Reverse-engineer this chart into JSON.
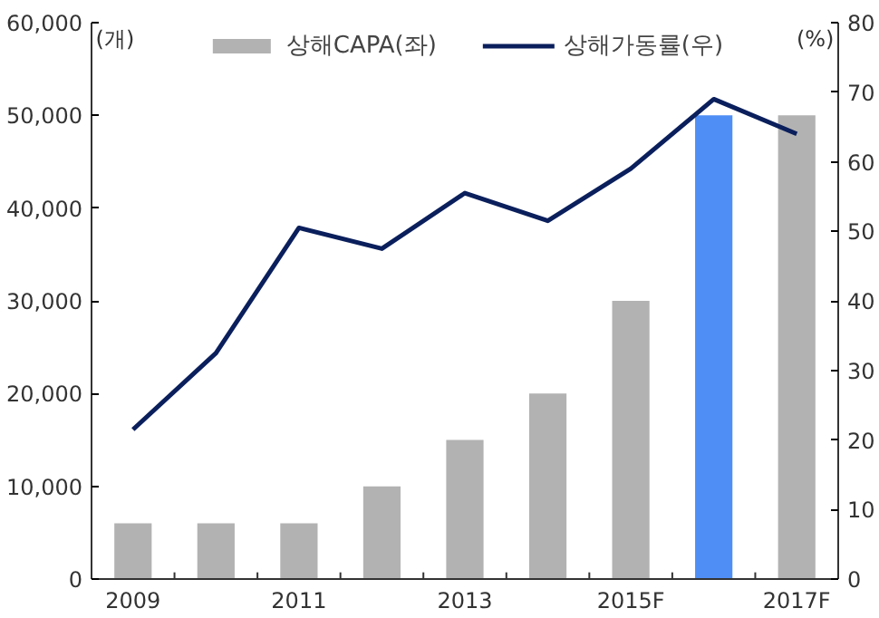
{
  "chart_data": {
    "type": "bar",
    "categories": [
      "2009",
      null,
      "2011",
      null,
      "2013",
      null,
      "2015F",
      null,
      "2017F"
    ],
    "series": [
      {
        "name": "상해CAPA(좌)",
        "colors": [
          "#b2b2b2",
          "#b2b2b2",
          "#b2b2b2",
          "#b2b2b2",
          "#b2b2b2",
          "#b2b2b2",
          "#b2b2b2",
          "#4f8ef5",
          "#b2b2b2"
        ],
        "color": "#b2b2b2",
        "values": [
          6000,
          6000,
          6000,
          10000,
          15000,
          20000,
          30000,
          50000,
          50000
        ]
      },
      {
        "name": "상해가동률(우)",
        "type": "line",
        "axis": "y2",
        "color": "#0a1f5c",
        "values": [
          21.5,
          32.5,
          50.5,
          47.5,
          55.5,
          51.5,
          59,
          69,
          64
        ]
      }
    ],
    "ylabel": "(개)",
    "y2label": "(%)",
    "ylim": [
      0,
      60000
    ],
    "yticks": [
      0,
      {
        "value": 10000,
        "label": "10,000"
      },
      {
        "value": 20000,
        "label": "20,000"
      },
      {
        "value": 30000,
        "label": "30,000"
      },
      {
        "value": 40000,
        "label": "40,000"
      },
      {
        "value": 50000,
        "label": "50,000"
      },
      {
        "value": 60000,
        "label": "60,000"
      }
    ],
    "y2lim": [
      0,
      80
    ],
    "y2ticks": [
      0,
      10,
      20,
      30,
      40,
      50,
      60,
      70,
      80
    ],
    "grid": false,
    "legend": "top",
    "marker": "none",
    "line_style": "solid"
  }
}
